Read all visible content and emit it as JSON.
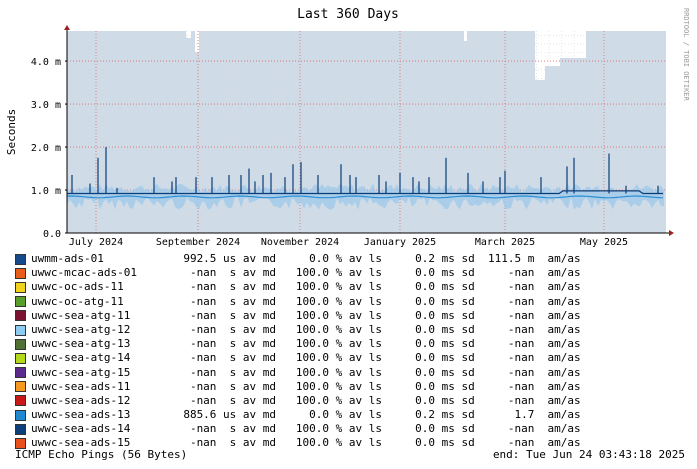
{
  "chart_data": {
    "type": "line",
    "title": "Last 360 Days",
    "ylabel": "Seconds",
    "watermark": "RRDTOOL / TOBI OETIKER",
    "y_ticks": [
      {
        "value": 0.0,
        "label": "0.0"
      },
      {
        "value": 0.001,
        "label": "1.0 m"
      },
      {
        "value": 0.002,
        "label": "2.0 m"
      },
      {
        "value": 0.003,
        "label": "3.0 m"
      },
      {
        "value": 0.004,
        "label": "4.0 m"
      }
    ],
    "ylim": [
      0,
      0.0047
    ],
    "x_ticks": [
      "July 2024",
      "September 2024",
      "November 2024",
      "January 2025",
      "March 2025",
      "May 2025"
    ],
    "colors": {
      "loss_background": "#cfdce8",
      "median_line": "#0a3d78",
      "median_fill": "#2b8fd6",
      "avg_line": "#1f5fa8",
      "grid_minor": "#d7d7d7",
      "grid_major": "#e06a6a",
      "axis": "#000000"
    },
    "series": [
      {
        "name": "uwmm-ads-01",
        "color": "#164a8a",
        "median": "992.5",
        "unit": "us",
        "loss": "0.0",
        "sd": "0.2",
        "sd_unit": "ms",
        "am": "111.5 m"
      },
      {
        "name": "uwwc-mcac-ads-01",
        "color": "#e85d1a",
        "median": "-nan",
        "unit": " s",
        "loss": "100.0",
        "sd": "0.0",
        "sd_unit": "ms",
        "am": "-nan"
      },
      {
        "name": "uwwc-oc-ads-11",
        "color": "#f0d31a",
        "median": "-nan",
        "unit": " s",
        "loss": "100.0",
        "sd": "0.0",
        "sd_unit": "ms",
        "am": "-nan"
      },
      {
        "name": "uwwc-oc-atg-11",
        "color": "#5a9e2a",
        "median": "-nan",
        "unit": " s",
        "loss": "100.0",
        "sd": "0.0",
        "sd_unit": "ms",
        "am": "-nan"
      },
      {
        "name": "uwwc-sea-atg-11",
        "color": "#7d1230",
        "median": "-nan",
        "unit": " s",
        "loss": "100.0",
        "sd": "0.0",
        "sd_unit": "ms",
        "am": "-nan"
      },
      {
        "name": "uwwc-sea-atg-12",
        "color": "#8ecbf0",
        "median": "-nan",
        "unit": " s",
        "loss": "100.0",
        "sd": "0.0",
        "sd_unit": "ms",
        "am": "-nan"
      },
      {
        "name": "uwwc-sea-atg-13",
        "color": "#4f6f33",
        "median": "-nan",
        "unit": " s",
        "loss": "100.0",
        "sd": "0.0",
        "sd_unit": "ms",
        "am": "-nan"
      },
      {
        "name": "uwwc-sea-atg-14",
        "color": "#b4d81c",
        "median": "-nan",
        "unit": " s",
        "loss": "100.0",
        "sd": "0.0",
        "sd_unit": "ms",
        "am": "-nan"
      },
      {
        "name": "uwwc-sea-atg-15",
        "color": "#5b2a8a",
        "median": "-nan",
        "unit": " s",
        "loss": "100.0",
        "sd": "0.0",
        "sd_unit": "ms",
        "am": "-nan"
      },
      {
        "name": "uwwc-sea-ads-11",
        "color": "#f59a1e",
        "median": "-nan",
        "unit": " s",
        "loss": "100.0",
        "sd": "0.0",
        "sd_unit": "ms",
        "am": "-nan"
      },
      {
        "name": "uwwc-sea-ads-12",
        "color": "#c81818",
        "median": "-nan",
        "unit": " s",
        "loss": "100.0",
        "sd": "0.0",
        "sd_unit": "ms",
        "am": "-nan"
      },
      {
        "name": "uwwc-sea-ads-13",
        "color": "#1e88d0",
        "median": "885.6",
        "unit": "us",
        "loss": "0.0",
        "sd": "0.2",
        "sd_unit": "ms",
        "am": "1.7"
      },
      {
        "name": "uwwc-sea-ads-14",
        "color": "#0d3f7a",
        "median": "-nan",
        "unit": " s",
        "loss": "100.0",
        "sd": "0.0",
        "sd_unit": "ms",
        "am": "-nan"
      },
      {
        "name": "uwwc-sea-ads-15",
        "color": "#e8501c",
        "median": "-nan",
        "unit": " s",
        "loss": "100.0",
        "sd": "0.0",
        "sd_unit": "ms",
        "am": "-nan"
      }
    ],
    "footer_left": "ICMP Echo Pings (56 Bytes)",
    "footer_right": "end: Tue Jun 24 03:43:18 2025"
  }
}
